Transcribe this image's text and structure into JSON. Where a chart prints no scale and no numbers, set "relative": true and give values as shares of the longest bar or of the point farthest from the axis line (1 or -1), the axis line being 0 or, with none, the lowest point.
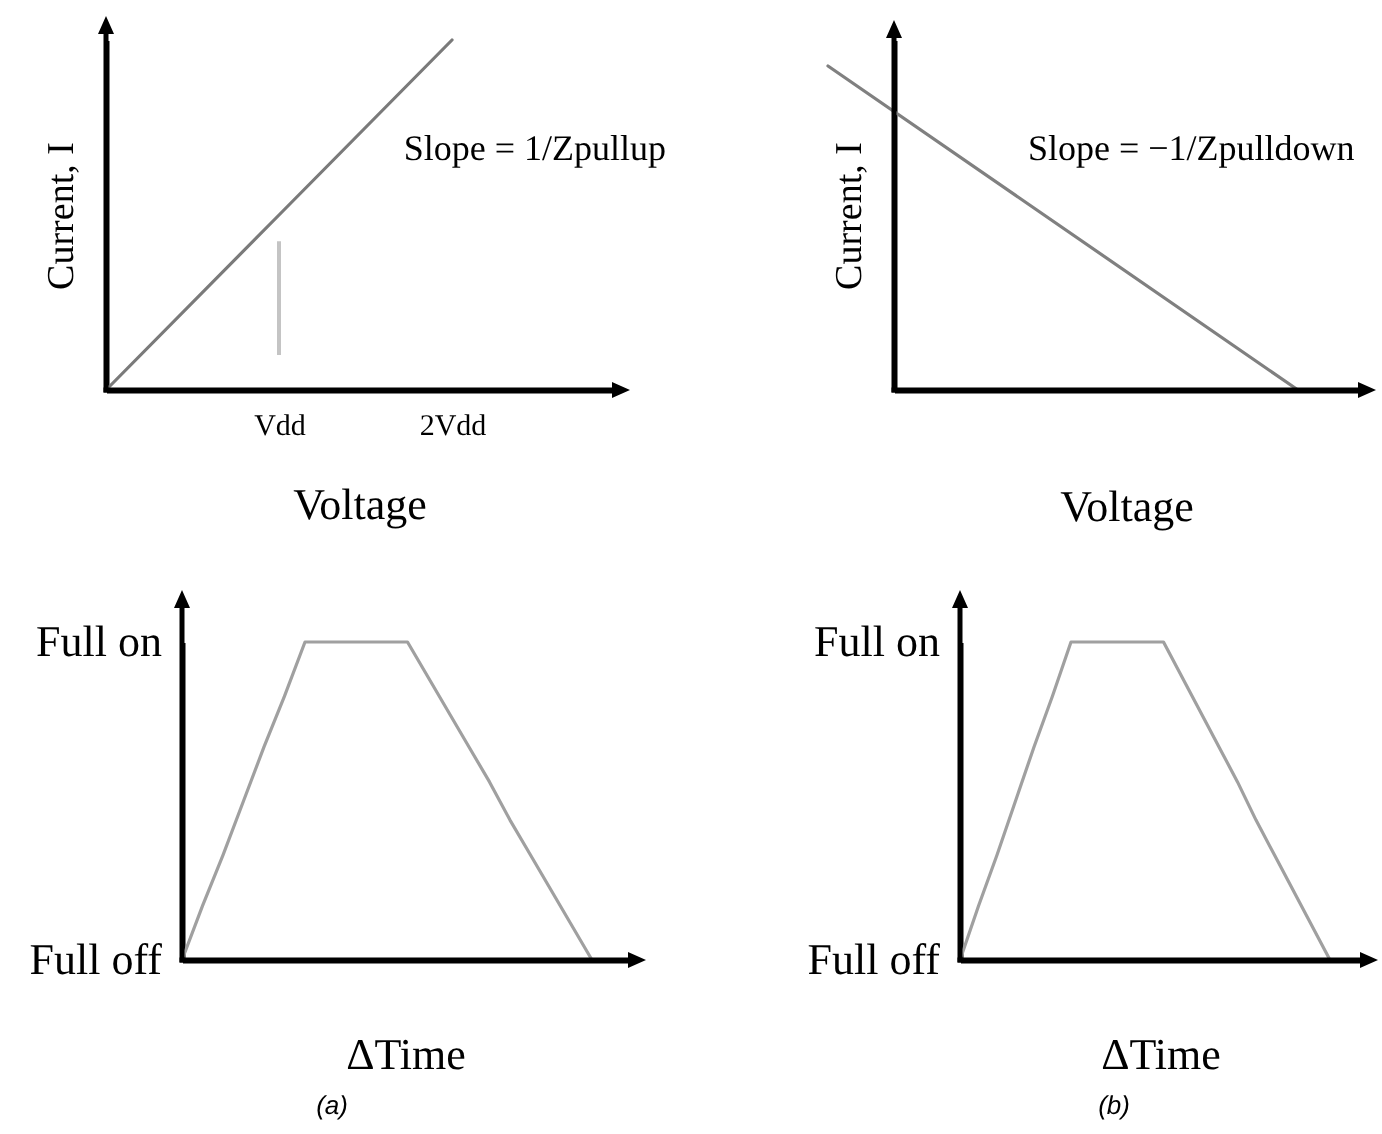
{
  "chart_data": [
    {
      "type": "line",
      "xlabel": "Voltage",
      "ylabel": "Current, I",
      "relative": true,
      "categories": [
        null,
        "Vdd",
        "2Vdd"
      ],
      "series": [
        {
          "color": "#7a7a7a",
          "values": [
            0,
            0.5,
            1
          ]
        }
      ],
      "ref_lines": [
        {
          "axis": "x",
          "value": "Vdd",
          "color": "#c4c4c4"
        }
      ],
      "annotations": [
        "Slope = 1/Zpullup"
      ]
    },
    {
      "type": "line",
      "xlabel": "Voltage",
      "ylabel": "Current, I",
      "relative": true,
      "categories": [
        null,
        null
      ],
      "series": [
        {
          "color": "#808080",
          "values": [
            1,
            0
          ]
        }
      ],
      "annotations": [
        "Slope = −1/Zpulldown"
      ]
    },
    {
      "type": "line",
      "xlabel": "ΔTime",
      "relative": true,
      "categories": [
        null,
        null,
        null,
        null,
        null,
        null,
        null,
        null,
        null,
        null,
        null,
        null,
        null,
        null,
        null,
        null,
        null,
        null,
        null,
        null,
        null
      ],
      "series": [
        {
          "color": "#a0a0a0",
          "values": [
            0,
            0.17,
            0.33,
            0.5,
            0.67,
            0.83,
            1,
            1,
            1,
            1,
            1,
            1,
            0.89,
            0.78,
            0.67,
            0.56,
            0.44,
            0.33,
            0.22,
            0.11,
            0
          ]
        }
      ],
      "annotations": [
        "Full on",
        "Full off",
        "(a)"
      ]
    },
    {
      "type": "line",
      "xlabel": "ΔTime",
      "relative": true,
      "categories": [
        null,
        null,
        null,
        null,
        null,
        null,
        null,
        null,
        null,
        null,
        null,
        null,
        null,
        null,
        null,
        null,
        null,
        null,
        null,
        null,
        null
      ],
      "series": [
        {
          "color": "#a0a0a0",
          "values": [
            0,
            0.17,
            0.33,
            0.5,
            0.67,
            0.83,
            1,
            1,
            1,
            1,
            1,
            1,
            0.89,
            0.78,
            0.67,
            0.56,
            0.44,
            0.33,
            0.22,
            0.11,
            0
          ]
        }
      ],
      "annotations": [
        "Full on",
        "Full off",
        "(b)"
      ]
    }
  ]
}
